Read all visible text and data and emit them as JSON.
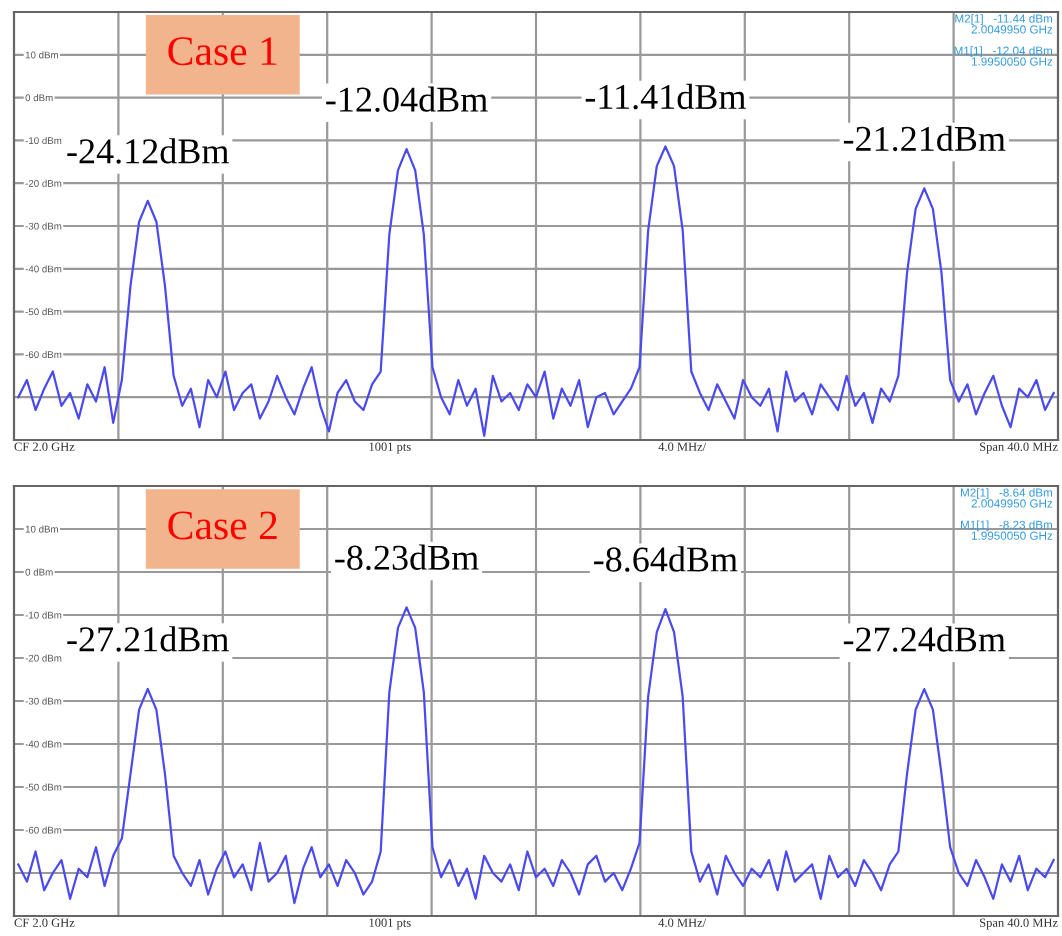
{
  "chart_data": [
    {
      "type": "line",
      "title": "Case 1",
      "categories": [
        null,
        null,
        null,
        null,
        null,
        null,
        null,
        null,
        null,
        null,
        null,
        null,
        null,
        null,
        null,
        null,
        null,
        null,
        null,
        null,
        null,
        null,
        null,
        null,
        null,
        null,
        null,
        null,
        null,
        null,
        null,
        null,
        null,
        null,
        null,
        null,
        null,
        null,
        null,
        null,
        null,
        null,
        null,
        null,
        null,
        null,
        null,
        null,
        null,
        null,
        null,
        null,
        null,
        null,
        null,
        null,
        null,
        null,
        null,
        null,
        null,
        null,
        null,
        null,
        null,
        null,
        null,
        null,
        null,
        null,
        null,
        null,
        null,
        null,
        null,
        null,
        null,
        null,
        null,
        null,
        null,
        null,
        null,
        null,
        null,
        null,
        null,
        null,
        null,
        null,
        null,
        null,
        null,
        null,
        null,
        null,
        null,
        null,
        null,
        null,
        null,
        null,
        null,
        null,
        null,
        null,
        null,
        null,
        null,
        null,
        null,
        null,
        null,
        null,
        null,
        null,
        null,
        null,
        null,
        null,
        null
      ],
      "series": [
        {
          "color": "#4a4af0",
          "values": [
            -70,
            -66,
            -73,
            -68,
            -64,
            -72,
            -69,
            -75,
            -67,
            -71,
            -63,
            -76,
            -66,
            -44,
            -29,
            -24.12,
            -29,
            -44,
            -65,
            -72,
            -68,
            -77,
            -66,
            -70,
            -64,
            -73,
            -69,
            -67,
            -75,
            -71,
            -65,
            -70,
            -74,
            -68,
            -63,
            -72,
            -78,
            -69,
            -66,
            -71,
            -73,
            -67,
            -64,
            -32,
            -17,
            -12.04,
            -17,
            -32,
            -63,
            -70,
            -74,
            -66,
            -72,
            -68,
            -79,
            -65,
            -71,
            -69,
            -73,
            -67,
            -70,
            -64,
            -75,
            -68,
            -72,
            -66,
            -77,
            -70,
            -69,
            -74,
            -71,
            -68,
            -63,
            -31,
            -16,
            -11.41,
            -16,
            -31,
            -64,
            -69,
            -73,
            -67,
            -71,
            -75,
            -66,
            -70,
            -72,
            -68,
            -78,
            -64,
            -71,
            -69,
            -74,
            -67,
            -70,
            -73,
            -65,
            -72,
            -69,
            -76,
            -68,
            -71,
            -65,
            -41,
            -26,
            -21.21,
            -26,
            -41,
            -66,
            -71,
            -67,
            -74,
            -69,
            -65,
            -72,
            -77,
            -68,
            -70,
            -66,
            -73,
            -69
          ],
          "value_labels": [
            null,
            null,
            null,
            null,
            null,
            null,
            null,
            null,
            null,
            null,
            null,
            null,
            null,
            null,
            null,
            "-24.12dBm",
            null,
            null,
            null,
            null,
            null,
            null,
            null,
            null,
            null,
            null,
            null,
            null,
            null,
            null,
            null,
            null,
            null,
            null,
            null,
            null,
            null,
            null,
            null,
            null,
            null,
            null,
            null,
            null,
            null,
            "-12.04dBm",
            null,
            null,
            null,
            null,
            null,
            null,
            null,
            null,
            null,
            null,
            null,
            null,
            null,
            null,
            null,
            null,
            null,
            null,
            null,
            null,
            null,
            null,
            null,
            null,
            null,
            null,
            null,
            null,
            null,
            "-11.41dBm",
            null,
            null,
            null,
            null,
            null,
            null,
            null,
            null,
            null,
            null,
            null,
            null,
            null,
            null,
            null,
            null,
            null,
            null,
            null,
            null,
            null,
            null,
            null,
            null,
            null,
            null,
            null,
            null,
            null,
            "-21.21dBm",
            null,
            null,
            null,
            null,
            null,
            null,
            null,
            null,
            null,
            null,
            null,
            null,
            null,
            null,
            null
          ]
        }
      ],
      "ylim": [
        -80,
        20
      ],
      "yticks": [
        {
          "value": 10,
          "label": "10 dBm"
        },
        {
          "value": 0,
          "label": "0 dBm"
        },
        {
          "value": -10,
          "label": "-10 dBm"
        },
        {
          "value": -20,
          "label": "-20 dBm"
        },
        {
          "value": -30,
          "label": "-30 dBm"
        },
        {
          "value": -40,
          "label": "-40 dBm"
        },
        {
          "value": -50,
          "label": "-50 dBm"
        },
        {
          "value": -60,
          "label": "-60 dBm"
        },
        {
          "value": -70,
          "label": null
        }
      ],
      "grid": true,
      "annotations": [
        "CF 2.0 GHz",
        "1001 pts",
        "4.0 MHz/",
        "Span 40.0 MHz",
        "M2[1]   -11.44 dBm\n2.0049950 GHz",
        "M1[1]   -12.04 dBm\n1.9950050 GHz"
      ]
    },
    {
      "type": "line",
      "title": "Case 2",
      "categories": [
        null,
        null,
        null,
        null,
        null,
        null,
        null,
        null,
        null,
        null,
        null,
        null,
        null,
        null,
        null,
        null,
        null,
        null,
        null,
        null,
        null,
        null,
        null,
        null,
        null,
        null,
        null,
        null,
        null,
        null,
        null,
        null,
        null,
        null,
        null,
        null,
        null,
        null,
        null,
        null,
        null,
        null,
        null,
        null,
        null,
        null,
        null,
        null,
        null,
        null,
        null,
        null,
        null,
        null,
        null,
        null,
        null,
        null,
        null,
        null,
        null,
        null,
        null,
        null,
        null,
        null,
        null,
        null,
        null,
        null,
        null,
        null,
        null,
        null,
        null,
        null,
        null,
        null,
        null,
        null,
        null,
        null,
        null,
        null,
        null,
        null,
        null,
        null,
        null,
        null,
        null,
        null,
        null,
        null,
        null,
        null,
        null,
        null,
        null,
        null,
        null,
        null,
        null,
        null,
        null,
        null,
        null,
        null,
        null,
        null,
        null,
        null,
        null,
        null,
        null,
        null,
        null,
        null,
        null,
        null,
        null
      ],
      "series": [
        {
          "color": "#4a4af0",
          "values": [
            -68,
            -72,
            -65,
            -74,
            -70,
            -67,
            -76,
            -69,
            -71,
            -64,
            -73,
            -66,
            -62,
            -47,
            -32,
            -27.21,
            -32,
            -47,
            -66,
            -70,
            -73,
            -67,
            -75,
            -69,
            -65,
            -71,
            -68,
            -74,
            -63,
            -72,
            -70,
            -66,
            -77,
            -69,
            -64,
            -71,
            -68,
            -73,
            -67,
            -70,
            -75,
            -72,
            -65,
            -28,
            -13,
            -8.23,
            -13,
            -28,
            -64,
            -71,
            -67,
            -73,
            -69,
            -76,
            -66,
            -70,
            -72,
            -68,
            -74,
            -65,
            -71,
            -69,
            -73,
            -67,
            -70,
            -75,
            -68,
            -66,
            -72,
            -70,
            -74,
            -69,
            -63,
            -29,
            -14,
            -8.64,
            -14,
            -29,
            -65,
            -72,
            -68,
            -75,
            -66,
            -70,
            -73,
            -69,
            -71,
            -67,
            -74,
            -65,
            -72,
            -70,
            -68,
            -76,
            -66,
            -71,
            -69,
            -73,
            -67,
            -70,
            -74,
            -68,
            -65,
            -47,
            -32,
            -27.24,
            -32,
            -47,
            -64,
            -70,
            -73,
            -67,
            -71,
            -76,
            -68,
            -72,
            -66,
            -74,
            -69,
            -71,
            -67
          ],
          "value_labels": [
            null,
            null,
            null,
            null,
            null,
            null,
            null,
            null,
            null,
            null,
            null,
            null,
            null,
            null,
            null,
            "-27.21dBm",
            null,
            null,
            null,
            null,
            null,
            null,
            null,
            null,
            null,
            null,
            null,
            null,
            null,
            null,
            null,
            null,
            null,
            null,
            null,
            null,
            null,
            null,
            null,
            null,
            null,
            null,
            null,
            null,
            null,
            "-8.23dBm",
            null,
            null,
            null,
            null,
            null,
            null,
            null,
            null,
            null,
            null,
            null,
            null,
            null,
            null,
            null,
            null,
            null,
            null,
            null,
            null,
            null,
            null,
            null,
            null,
            null,
            null,
            null,
            null,
            null,
            "-8.64dBm",
            null,
            null,
            null,
            null,
            null,
            null,
            null,
            null,
            null,
            null,
            null,
            null,
            null,
            null,
            null,
            null,
            null,
            null,
            null,
            null,
            null,
            null,
            null,
            null,
            null,
            null,
            null,
            null,
            null,
            "-27.24dBm",
            null,
            null,
            null,
            null,
            null,
            null,
            null,
            null,
            null,
            null,
            null,
            null,
            null,
            null,
            null
          ]
        }
      ],
      "ylim": [
        -80,
        20
      ],
      "yticks": [
        {
          "value": 10,
          "label": "10 dBm"
        },
        {
          "value": 0,
          "label": "0 dBm"
        },
        {
          "value": -10,
          "label": "-10 dBm"
        },
        {
          "value": -20,
          "label": "-20 dBm"
        },
        {
          "value": -30,
          "label": "-30 dBm"
        },
        {
          "value": -40,
          "label": "-40 dBm"
        },
        {
          "value": -50,
          "label": "-50 dBm"
        },
        {
          "value": -60,
          "label": "-60 dBm"
        },
        {
          "value": -70,
          "label": null
        }
      ],
      "grid": true,
      "annotations": [
        "CF 2.0 GHz",
        "1001 pts",
        "4.0 MHz/",
        "Span 40.0 MHz",
        "M2[1]   -8.64 dBm\n2.0049950 GHz",
        "M1[1]   -8.23 dBm\n1.9950050 GHz"
      ]
    }
  ]
}
